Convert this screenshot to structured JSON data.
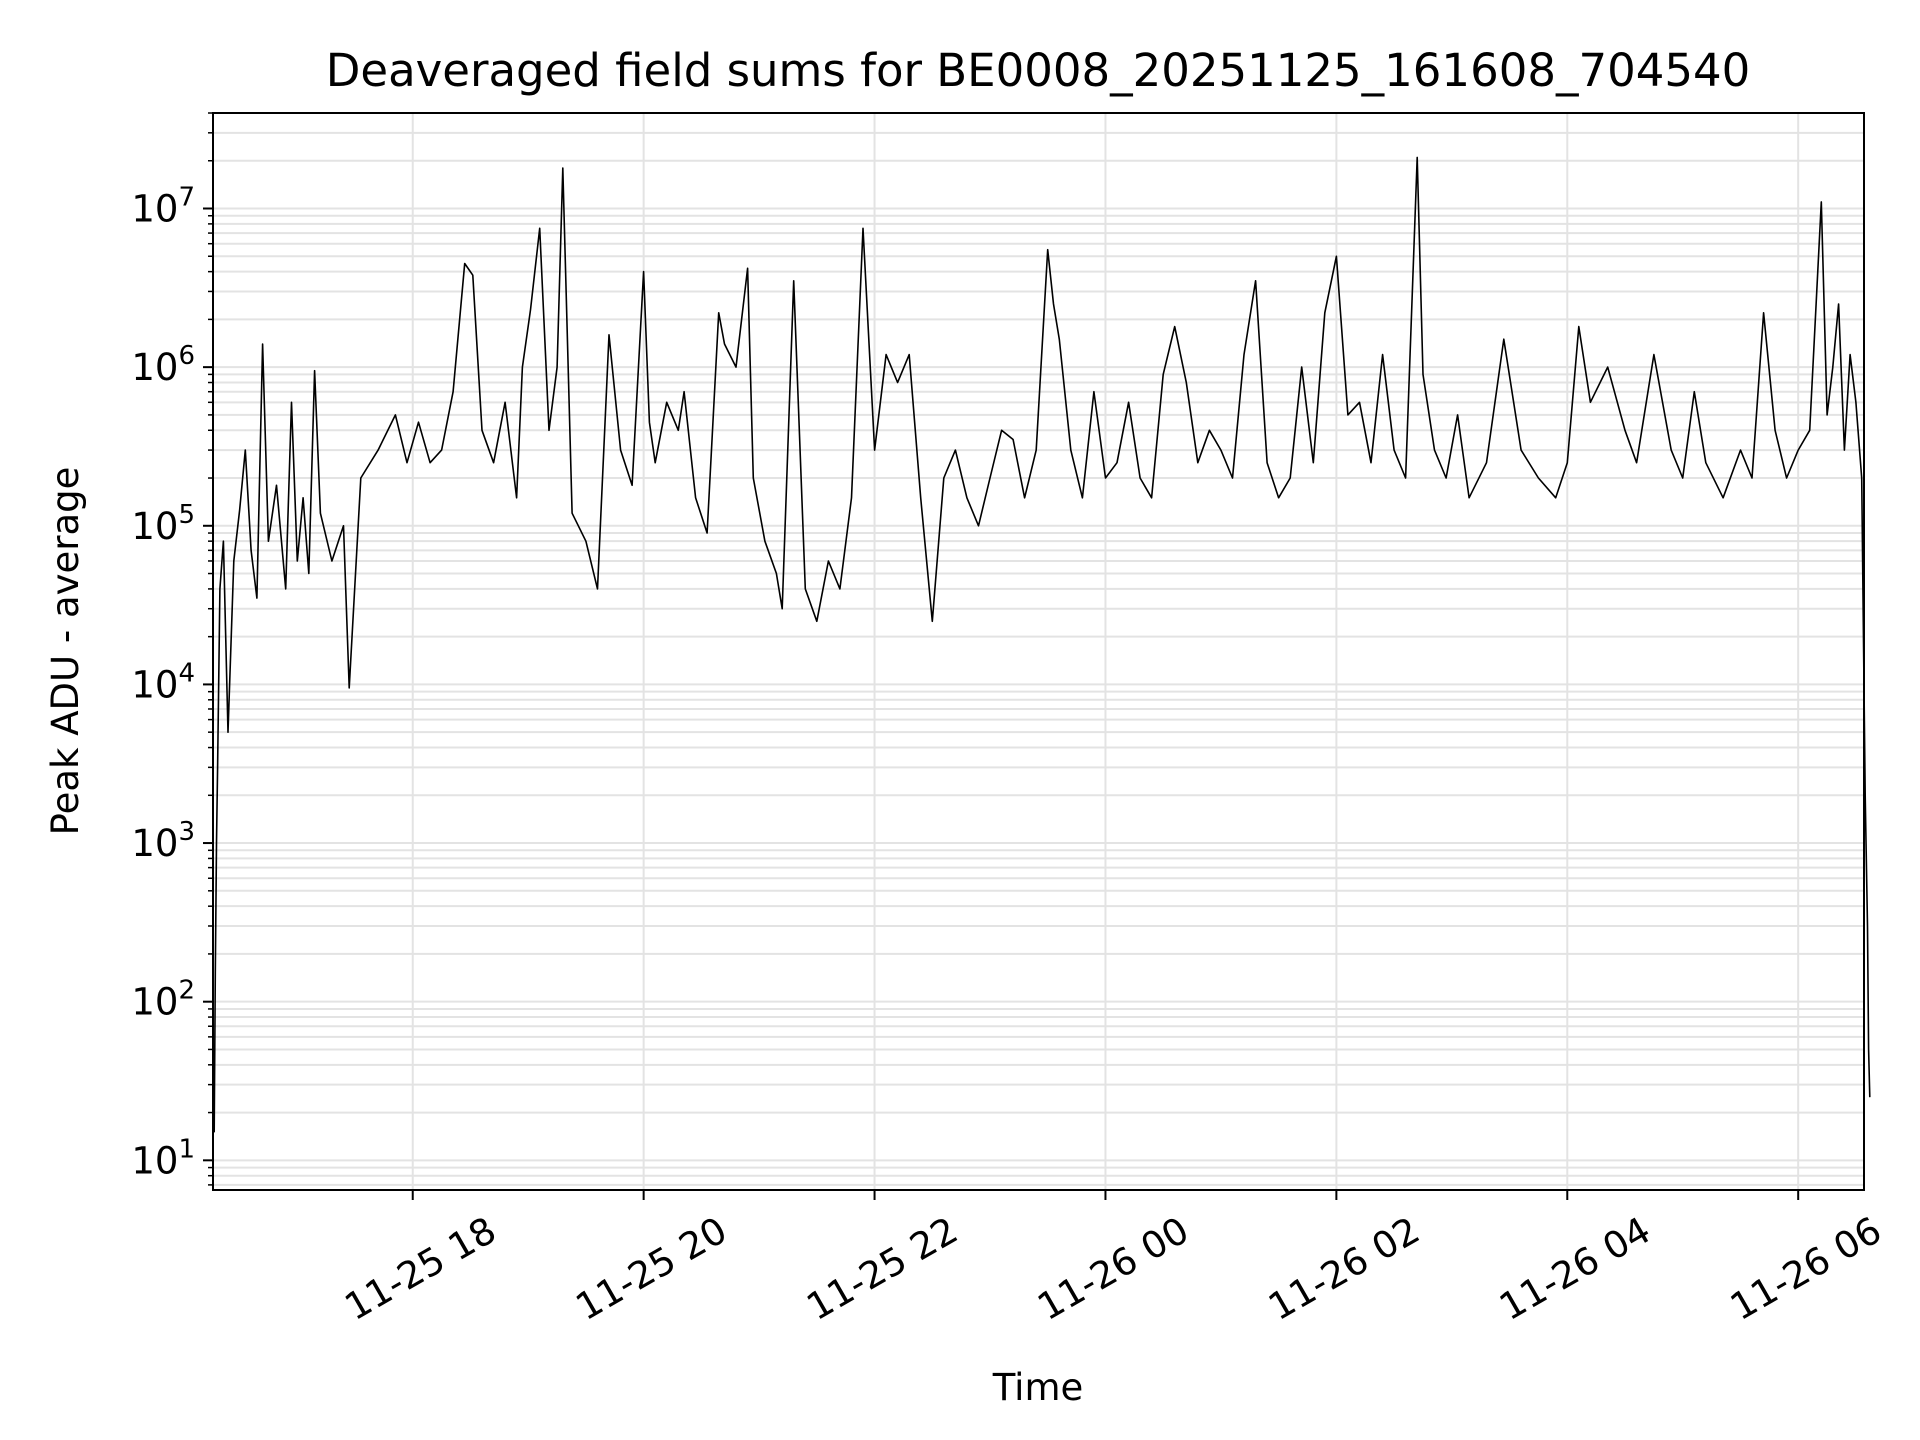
{
  "chart_data": {
    "type": "line",
    "title": "Deaveraged field sums for BE0008_20251125_161608_704540",
    "xlabel": "Time",
    "ylabel": "Peak ADU - average",
    "yscale": "log",
    "ylim": [
      6.5,
      40000000
    ],
    "xlim_hours_since_2025-11-25_00:00": [
      16.27,
      30.57
    ],
    "grid": true,
    "x_ticks": [
      {
        "label": "11-25 18",
        "hours": 18
      },
      {
        "label": "11-25 20",
        "hours": 20
      },
      {
        "label": "11-25 22",
        "hours": 22
      },
      {
        "label": "11-26 00",
        "hours": 24
      },
      {
        "label": "11-26 02",
        "hours": 26
      },
      {
        "label": "11-26 04",
        "hours": 28
      },
      {
        "label": "11-26 06",
        "hours": 30
      }
    ],
    "y_ticks": [
      {
        "base": "10",
        "exp": "1",
        "value": 10
      },
      {
        "base": "10",
        "exp": "2",
        "value": 100
      },
      {
        "base": "10",
        "exp": "3",
        "value": 1000
      },
      {
        "base": "10",
        "exp": "4",
        "value": 10000
      },
      {
        "base": "10",
        "exp": "5",
        "value": 100000
      },
      {
        "base": "10",
        "exp": "6",
        "value": 1000000
      },
      {
        "base": "10",
        "exp": "7",
        "value": 10000000
      }
    ],
    "series": [
      {
        "name": "deaveraged field sum",
        "color": "#000000",
        "points": [
          [
            16.28,
            15
          ],
          [
            16.29,
            150
          ],
          [
            16.3,
            1000
          ],
          [
            16.31,
            3000
          ],
          [
            16.33,
            40000
          ],
          [
            16.36,
            80000
          ],
          [
            16.4,
            5000
          ],
          [
            16.45,
            60000
          ],
          [
            16.5,
            125000
          ],
          [
            16.55,
            300000
          ],
          [
            16.6,
            70000
          ],
          [
            16.65,
            35000
          ],
          [
            16.7,
            1400000
          ],
          [
            16.75,
            80000
          ],
          [
            16.82,
            180000
          ],
          [
            16.9,
            40000
          ],
          [
            16.95,
            600000
          ],
          [
            17.0,
            60000
          ],
          [
            17.05,
            150000
          ],
          [
            17.1,
            50000
          ],
          [
            17.15,
            950000
          ],
          [
            17.2,
            120000
          ],
          [
            17.3,
            60000
          ],
          [
            17.4,
            100000
          ],
          [
            17.45,
            9500
          ],
          [
            17.55,
            200000
          ],
          [
            17.7,
            300000
          ],
          [
            17.85,
            500000
          ],
          [
            17.95,
            250000
          ],
          [
            18.05,
            450000
          ],
          [
            18.15,
            250000
          ],
          [
            18.25,
            300000
          ],
          [
            18.35,
            700000
          ],
          [
            18.45,
            4500000
          ],
          [
            18.52,
            3800000
          ],
          [
            18.6,
            400000
          ],
          [
            18.7,
            250000
          ],
          [
            18.8,
            600000
          ],
          [
            18.9,
            150000
          ],
          [
            18.95,
            1000000
          ],
          [
            19.02,
            2300000
          ],
          [
            19.1,
            7500000
          ],
          [
            19.18,
            400000
          ],
          [
            19.25,
            1000000
          ],
          [
            19.3,
            18000000
          ],
          [
            19.38,
            120000
          ],
          [
            19.5,
            80000
          ],
          [
            19.6,
            40000
          ],
          [
            19.7,
            1600000
          ],
          [
            19.8,
            300000
          ],
          [
            19.9,
            180000
          ],
          [
            20.0,
            4000000
          ],
          [
            20.05,
            450000
          ],
          [
            20.1,
            250000
          ],
          [
            20.2,
            600000
          ],
          [
            20.3,
            400000
          ],
          [
            20.35,
            700000
          ],
          [
            20.45,
            150000
          ],
          [
            20.55,
            90000
          ],
          [
            20.65,
            2200000
          ],
          [
            20.7,
            1400000
          ],
          [
            20.8,
            1000000
          ],
          [
            20.9,
            4200000
          ],
          [
            20.95,
            200000
          ],
          [
            21.05,
            80000
          ],
          [
            21.15,
            50000
          ],
          [
            21.2,
            30000
          ],
          [
            21.3,
            3500000
          ],
          [
            21.4,
            40000
          ],
          [
            21.5,
            25000
          ],
          [
            21.6,
            60000
          ],
          [
            21.7,
            40000
          ],
          [
            21.8,
            150000
          ],
          [
            21.9,
            7500000
          ],
          [
            22.0,
            300000
          ],
          [
            22.1,
            1200000
          ],
          [
            22.2,
            800000
          ],
          [
            22.3,
            1200000
          ],
          [
            22.4,
            150000
          ],
          [
            22.5,
            25000
          ],
          [
            22.6,
            200000
          ],
          [
            22.7,
            300000
          ],
          [
            22.8,
            150000
          ],
          [
            22.9,
            100000
          ],
          [
            23.0,
            200000
          ],
          [
            23.1,
            400000
          ],
          [
            23.2,
            350000
          ],
          [
            23.3,
            150000
          ],
          [
            23.4,
            300000
          ],
          [
            23.5,
            5500000
          ],
          [
            23.55,
            2500000
          ],
          [
            23.6,
            1500000
          ],
          [
            23.7,
            300000
          ],
          [
            23.8,
            150000
          ],
          [
            23.9,
            700000
          ],
          [
            24.0,
            200000
          ],
          [
            24.1,
            250000
          ],
          [
            24.2,
            600000
          ],
          [
            24.3,
            200000
          ],
          [
            24.4,
            150000
          ],
          [
            24.5,
            900000
          ],
          [
            24.6,
            1800000
          ],
          [
            24.7,
            800000
          ],
          [
            24.8,
            250000
          ],
          [
            24.9,
            400000
          ],
          [
            25.0,
            300000
          ],
          [
            25.1,
            200000
          ],
          [
            25.2,
            1200000
          ],
          [
            25.3,
            3500000
          ],
          [
            25.4,
            250000
          ],
          [
            25.5,
            150000
          ],
          [
            25.6,
            200000
          ],
          [
            25.7,
            1000000
          ],
          [
            25.8,
            250000
          ],
          [
            25.9,
            2200000
          ],
          [
            26.0,
            5000000
          ],
          [
            26.1,
            500000
          ],
          [
            26.2,
            600000
          ],
          [
            26.3,
            250000
          ],
          [
            26.4,
            1200000
          ],
          [
            26.5,
            300000
          ],
          [
            26.6,
            200000
          ],
          [
            26.7,
            21000000
          ],
          [
            26.75,
            900000
          ],
          [
            26.85,
            300000
          ],
          [
            26.95,
            200000
          ],
          [
            27.05,
            500000
          ],
          [
            27.15,
            150000
          ],
          [
            27.3,
            250000
          ],
          [
            27.45,
            1500000
          ],
          [
            27.6,
            300000
          ],
          [
            27.75,
            200000
          ],
          [
            27.9,
            150000
          ],
          [
            28.0,
            250000
          ],
          [
            28.1,
            1800000
          ],
          [
            28.2,
            600000
          ],
          [
            28.35,
            1000000
          ],
          [
            28.5,
            400000
          ],
          [
            28.6,
            250000
          ],
          [
            28.75,
            1200000
          ],
          [
            28.9,
            300000
          ],
          [
            29.0,
            200000
          ],
          [
            29.1,
            700000
          ],
          [
            29.2,
            250000
          ],
          [
            29.35,
            150000
          ],
          [
            29.5,
            300000
          ],
          [
            29.6,
            200000
          ],
          [
            29.7,
            2200000
          ],
          [
            29.8,
            400000
          ],
          [
            29.9,
            200000
          ],
          [
            30.0,
            300000
          ],
          [
            30.1,
            400000
          ],
          [
            30.2,
            11000000
          ],
          [
            30.25,
            500000
          ],
          [
            30.3,
            1000000
          ],
          [
            30.35,
            2500000
          ],
          [
            30.4,
            300000
          ],
          [
            30.45,
            1200000
          ],
          [
            30.5,
            600000
          ],
          [
            30.55,
            200000
          ],
          [
            30.58,
            2000
          ],
          [
            30.6,
            300
          ],
          [
            30.61,
            50
          ],
          [
            30.62,
            25
          ]
        ]
      }
    ]
  }
}
